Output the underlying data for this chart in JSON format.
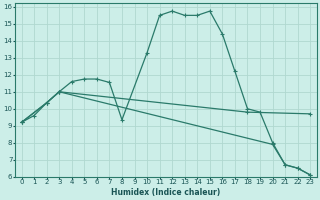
{
  "xlabel": "Humidex (Indice chaleur)",
  "bg_color": "#cceee8",
  "grid_color": "#b0d8d0",
  "line_color": "#2a7a6a",
  "xlim": [
    -0.5,
    23.5
  ],
  "ylim": [
    6,
    16.2
  ],
  "xticks": [
    0,
    1,
    2,
    3,
    4,
    5,
    6,
    7,
    8,
    9,
    10,
    11,
    12,
    13,
    14,
    15,
    16,
    17,
    18,
    19,
    20,
    21,
    22,
    23
  ],
  "yticks": [
    6,
    7,
    8,
    9,
    10,
    11,
    12,
    13,
    14,
    15,
    16
  ],
  "curve1_x": [
    0,
    1,
    2,
    3,
    4,
    5,
    6,
    7,
    8,
    10,
    11,
    12,
    13,
    14,
    15,
    16,
    17,
    18,
    19,
    20,
    21,
    22,
    23
  ],
  "curve1_y": [
    9.2,
    9.6,
    10.35,
    11.0,
    11.6,
    11.75,
    11.75,
    11.55,
    9.35,
    13.3,
    15.5,
    15.75,
    15.5,
    15.5,
    15.75,
    14.4,
    12.2,
    10.0,
    9.8,
    8.0,
    6.7,
    6.5,
    6.1
  ],
  "curve2_x": [
    0,
    2,
    3,
    18,
    23
  ],
  "curve2_y": [
    9.2,
    10.35,
    11.0,
    9.8,
    9.7
  ],
  "curve3_x": [
    0,
    2,
    3,
    20,
    21,
    22,
    23
  ],
  "curve3_y": [
    9.2,
    10.35,
    11.0,
    7.9,
    6.7,
    6.5,
    6.1
  ]
}
